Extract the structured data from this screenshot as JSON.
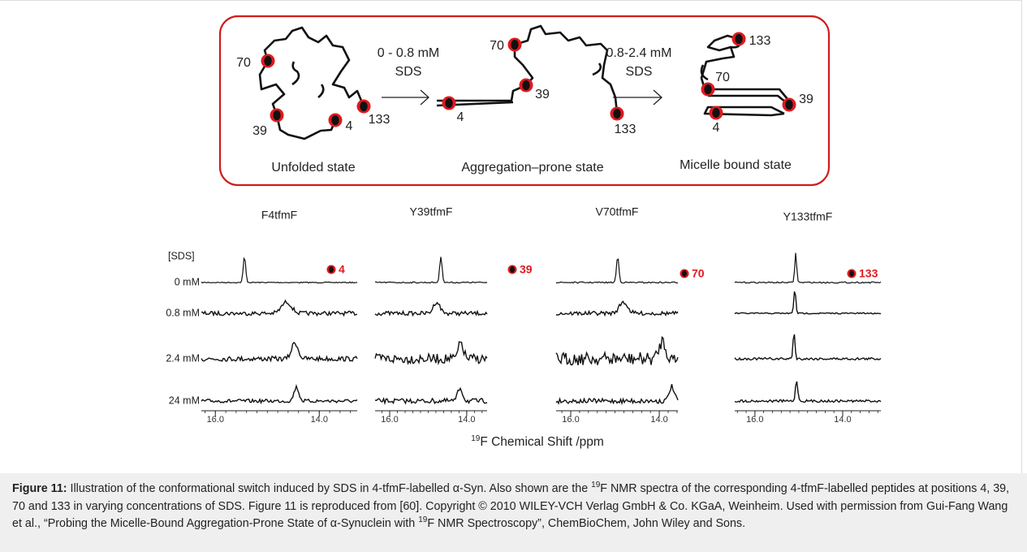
{
  "scheme": {
    "states": [
      {
        "name": "Unfolded state",
        "residues": [
          "70",
          "39",
          "4",
          "133"
        ]
      },
      {
        "name": "Aggregation–prone state",
        "residues": [
          "70",
          "39",
          "4",
          "133"
        ]
      },
      {
        "name": "Micelle bound state",
        "residues": [
          "133",
          "70",
          "39",
          "4"
        ]
      }
    ],
    "transitions": [
      {
        "line1": "0 - 0.8 mM",
        "line2": "SDS"
      },
      {
        "line1": "0.8-2.4 mM",
        "line2": "SDS"
      }
    ]
  },
  "spectra": {
    "row_header": "[SDS]",
    "rows": [
      "0 mM",
      "0.8 mM",
      "2.4 mM",
      "24 mM"
    ],
    "x_label": {
      "sup": "19",
      "text": "F Chemical Shift /ppm"
    },
    "panels": [
      {
        "title": "F4tfmF",
        "residue": "4",
        "xlim": [
          16.27,
          13.27
        ],
        "xticks": [
          {
            "value": 16,
            "label": "16.0"
          },
          {
            "value": 14,
            "label": "14.0"
          }
        ],
        "peak_ppm": [
          15.44,
          14.63,
          14.47,
          14.44
        ]
      },
      {
        "title": "Y39tfmF",
        "residue": "39",
        "xlim": [
          16.38,
          13.47
        ],
        "xticks": [
          {
            "value": 16,
            "label": "16.0"
          },
          {
            "value": 14,
            "label": "14.0"
          }
        ],
        "peak_ppm": [
          14.67,
          14.78,
          14.15,
          14.17
        ]
      },
      {
        "title": "V70tfmF",
        "residue": "70",
        "xlim": [
          16.33,
          13.58
        ],
        "xticks": [
          {
            "value": 16,
            "label": "16.0"
          },
          {
            "value": 14,
            "label": "14.0"
          }
        ],
        "peak_ppm": [
          14.94,
          14.81,
          13.93,
          13.72
        ]
      },
      {
        "title": "Y133tfmF",
        "residue": "133",
        "xlim": [
          16.46,
          13.13
        ],
        "xticks": [
          {
            "value": 16,
            "label": "16.0"
          },
          {
            "value": 14,
            "label": "14.0"
          }
        ],
        "peak_ppm": [
          15.07,
          15.09,
          15.11,
          15.05
        ]
      }
    ]
  },
  "caption": {
    "label": "Figure 11:",
    "part1": " Illustration of the conformational switch induced by SDS in 4-tfmF-labelled α-Syn. Also shown are the ",
    "sup1": "19",
    "part2": "F NMR spectra of the corresponding 4-tfmF-labelled peptides at positions 4, 39, 70 and 133 in varying concentrations of SDS. Figure 11 is reproduced from [60]. Copyright © 2010 WILEY-VCH Verlag GmbH & Co. KGaA, Weinheim. Used with permission from Gui-Fang Wang et al., “Probing the Micelle-Bound Aggregation-Prone State of α-Synuclein with ",
    "sup2": "19",
    "part3": "F NMR Spectroscopy”, ChemBioChem, John Wiley and Sons."
  }
}
